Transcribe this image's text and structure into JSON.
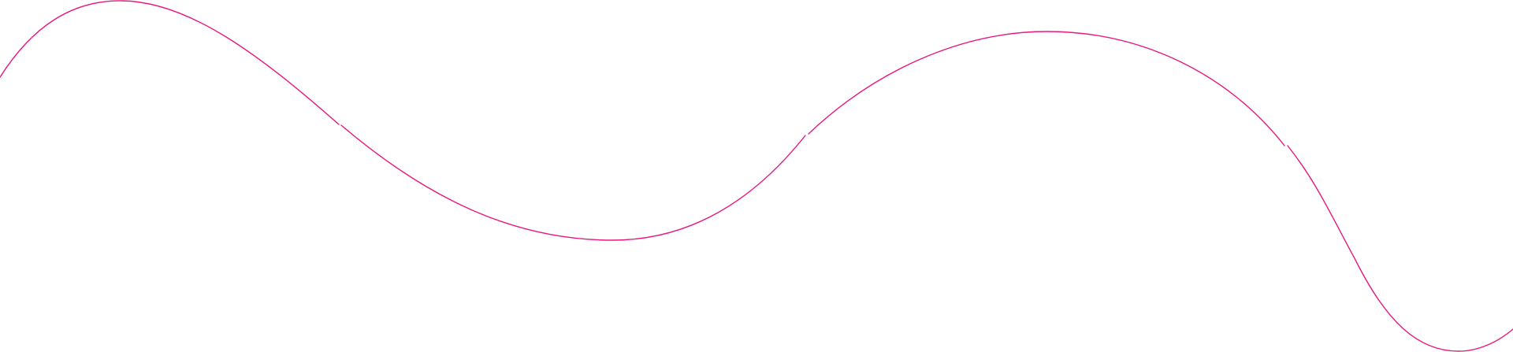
{
  "decoration": {
    "line_color": "#e8197d"
  }
}
